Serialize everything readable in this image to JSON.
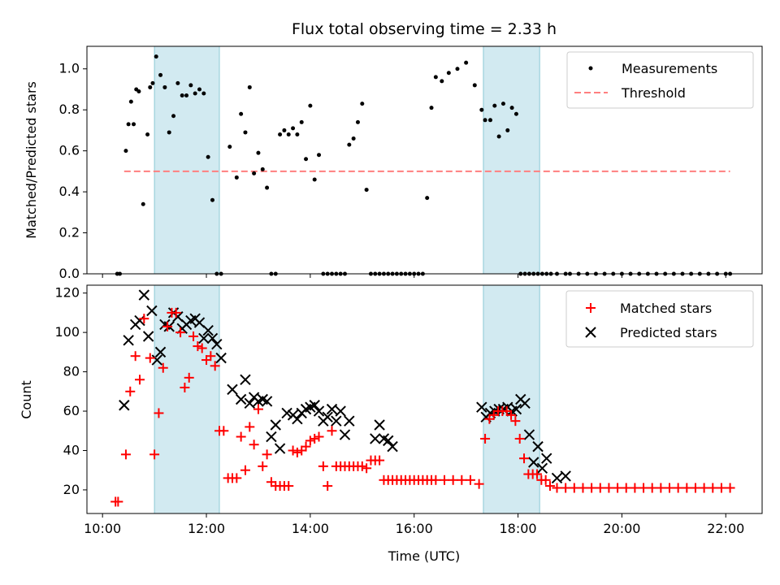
{
  "chart_data": [
    {
      "type": "scatter",
      "title": "Flux total observing time = 2.33 h",
      "ylabel": "Matched/Predicted stars",
      "xlabel": "",
      "ylim": [
        0,
        1.11
      ],
      "xlim_hours": [
        9.7,
        22.7
      ],
      "yticks": [
        0.0,
        0.2,
        0.4,
        0.6,
        0.8,
        1.0
      ],
      "ytick_labels": [
        "0.0",
        "0.2",
        "0.4",
        "0.6",
        "0.8",
        "1.0"
      ],
      "legend": {
        "placement": "top-right",
        "entries": [
          "Measurements",
          "Threshold"
        ]
      },
      "threshold": {
        "name": "Threshold",
        "value": 0.5,
        "x_range": [
          "10:25",
          "22:05"
        ],
        "color": "#ff7f7f"
      },
      "shaded_intervals": [
        [
          "11:00",
          "12:15"
        ],
        [
          "17:20",
          "18:25"
        ]
      ],
      "shade_color": "#add8e6",
      "series": [
        {
          "name": "Measurements",
          "color": "#000000",
          "x": [
            "10:17",
            "10:20",
            "10:27",
            "10:30",
            "10:33",
            "10:36",
            "10:39",
            "10:42",
            "10:47",
            "10:52",
            "10:55",
            "10:58",
            "11:02",
            "11:07",
            "11:12",
            "11:17",
            "11:22",
            "11:27",
            "11:32",
            "11:37",
            "11:42",
            "11:47",
            "11:52",
            "11:57",
            "12:02",
            "12:07",
            "12:12",
            "12:17",
            "12:27",
            "12:35",
            "12:40",
            "12:45",
            "12:50",
            "12:55",
            "13:00",
            "13:05",
            "13:10",
            "13:15",
            "13:20",
            "13:25",
            "13:30",
            "13:35",
            "13:40",
            "13:45",
            "13:50",
            "13:55",
            "14:00",
            "14:05",
            "14:10",
            "14:15",
            "14:20",
            "14:25",
            "14:30",
            "14:35",
            "14:40",
            "14:45",
            "14:50",
            "14:55",
            "15:00",
            "15:05",
            "15:10",
            "15:15",
            "15:20",
            "15:25",
            "15:30",
            "15:35",
            "15:40",
            "15:45",
            "15:50",
            "15:55",
            "16:00",
            "16:05",
            "16:10",
            "16:15",
            "16:20",
            "16:25",
            "16:32",
            "16:40",
            "16:50",
            "17:00",
            "17:10",
            "17:18",
            "17:22",
            "17:28",
            "17:33",
            "17:38",
            "17:43",
            "17:48",
            "17:53",
            "17:58",
            "18:03",
            "18:08",
            "18:13",
            "18:18",
            "18:23",
            "18:28",
            "18:33",
            "18:38",
            "18:45",
            "18:55",
            "19:00",
            "19:10",
            "19:20",
            "19:30",
            "19:40",
            "19:50",
            "20:00",
            "20:10",
            "20:20",
            "20:30",
            "20:40",
            "20:50",
            "21:00",
            "21:10",
            "21:20",
            "21:30",
            "21:40",
            "21:50",
            "22:00",
            "22:05"
          ],
          "y": [
            0.0,
            0.0,
            0.6,
            0.73,
            0.84,
            0.73,
            0.9,
            0.89,
            0.34,
            0.68,
            0.91,
            0.93,
            1.06,
            0.97,
            0.91,
            0.69,
            0.77,
            0.93,
            0.87,
            0.87,
            0.92,
            0.88,
            0.9,
            0.88,
            0.57,
            0.36,
            0.0,
            0.0,
            0.62,
            0.47,
            0.78,
            0.69,
            0.91,
            0.49,
            0.59,
            0.51,
            0.42,
            0.0,
            0.0,
            0.68,
            0.7,
            0.68,
            0.71,
            0.68,
            0.74,
            0.56,
            0.82,
            0.46,
            0.58,
            0.0,
            0.0,
            0.0,
            0.0,
            0.0,
            0.0,
            0.63,
            0.66,
            0.74,
            0.83,
            0.41,
            0.0,
            0.0,
            0.0,
            0.0,
            0.0,
            0.0,
            0.0,
            0.0,
            0.0,
            0.0,
            0.0,
            0.0,
            0.0,
            0.37,
            0.81,
            0.96,
            0.94,
            0.98,
            1.0,
            1.03,
            0.92,
            0.8,
            0.75,
            0.75,
            0.82,
            0.67,
            0.83,
            0.7,
            0.81,
            0.78,
            0.0,
            0.0,
            0.0,
            0.0,
            0.0,
            0.0,
            0.0,
            0.0,
            0.0,
            0.0,
            0.0,
            0.0,
            0.0,
            0.0,
            0.0,
            0.0,
            0.0,
            0.0,
            0.0,
            0.0,
            0.0,
            0.0,
            0.0,
            0.0,
            0.0,
            0.0,
            0.0,
            0.0,
            0.0,
            0.0
          ]
        }
      ]
    },
    {
      "type": "scatter",
      "title": "",
      "ylabel": "Count",
      "xlabel": "Time (UTC)",
      "ylim": [
        8,
        124
      ],
      "xlim_hours": [
        9.7,
        22.7
      ],
      "yticks": [
        20,
        40,
        60,
        80,
        100,
        120
      ],
      "ytick_labels": [
        "20",
        "40",
        "60",
        "80",
        "100",
        "120"
      ],
      "xticks": [
        "10:00",
        "12:00",
        "14:00",
        "16:00",
        "18:00",
        "20:00",
        "22:00"
      ],
      "legend": {
        "placement": "top-right",
        "entries": [
          "Matched stars",
          "Predicted stars"
        ]
      },
      "shaded_intervals": [
        [
          "11:00",
          "12:15"
        ],
        [
          "17:20",
          "18:25"
        ]
      ],
      "shade_color": "#add8e6",
      "series": [
        {
          "name": "Matched stars",
          "marker": "plus",
          "color": "#ff0000",
          "x": [
            "10:15",
            "10:18",
            "10:27",
            "10:32",
            "10:38",
            "10:43",
            "10:48",
            "10:55",
            "11:00",
            "11:05",
            "11:10",
            "11:15",
            "11:20",
            "11:25",
            "11:30",
            "11:35",
            "11:40",
            "11:45",
            "11:50",
            "11:55",
            "12:00",
            "12:05",
            "12:10",
            "12:15",
            "12:20",
            "12:25",
            "12:30",
            "12:35",
            "12:40",
            "12:45",
            "12:50",
            "12:55",
            "13:00",
            "13:05",
            "13:10",
            "13:15",
            "13:20",
            "13:25",
            "13:30",
            "13:35",
            "13:40",
            "13:45",
            "13:50",
            "13:55",
            "14:00",
            "14:05",
            "14:10",
            "14:15",
            "14:20",
            "14:25",
            "14:30",
            "14:35",
            "14:40",
            "14:45",
            "14:50",
            "14:55",
            "15:00",
            "15:05",
            "15:10",
            "15:15",
            "15:20",
            "15:25",
            "15:30",
            "15:35",
            "15:40",
            "15:45",
            "15:50",
            "15:55",
            "16:00",
            "16:05",
            "16:10",
            "16:15",
            "16:20",
            "16:25",
            "16:35",
            "16:45",
            "16:55",
            "17:05",
            "17:15",
            "17:22",
            "17:27",
            "17:32",
            "17:37",
            "17:42",
            "17:47",
            "17:52",
            "17:57",
            "18:02",
            "18:07",
            "18:12",
            "18:17",
            "18:22",
            "18:27",
            "18:32",
            "18:37",
            "18:45",
            "18:55",
            "19:05",
            "19:15",
            "19:25",
            "19:35",
            "19:45",
            "19:55",
            "20:05",
            "20:15",
            "20:25",
            "20:35",
            "20:45",
            "20:55",
            "21:05",
            "21:15",
            "21:25",
            "21:35",
            "21:45",
            "21:55",
            "22:05"
          ],
          "y": [
            14,
            14,
            38,
            70,
            88,
            76,
            107,
            87,
            38,
            59,
            82,
            103,
            110,
            110,
            100,
            72,
            77,
            98,
            93,
            92,
            86,
            88,
            83,
            50,
            50,
            26,
            26,
            26,
            47,
            30,
            52,
            43,
            61,
            32,
            38,
            24,
            22,
            22,
            22,
            22,
            40,
            39,
            40,
            42,
            45,
            46,
            47,
            32,
            22,
            50,
            32,
            32,
            32,
            32,
            32,
            32,
            32,
            31,
            35,
            35,
            35,
            25,
            25,
            25,
            25,
            25,
            25,
            25,
            25,
            25,
            25,
            25,
            25,
            25,
            25,
            25,
            25,
            25,
            23,
            46,
            56,
            58,
            60,
            60,
            60,
            58,
            55,
            46,
            36,
            28,
            28,
            28,
            25,
            25,
            22,
            21,
            21,
            21,
            21,
            21,
            21,
            21,
            21,
            21,
            21,
            21,
            21,
            21,
            21,
            21,
            21,
            21,
            21,
            21,
            21,
            21
          ]
        },
        {
          "name": "Predicted stars",
          "marker": "x",
          "color": "#000000",
          "x": [
            "10:25",
            "10:30",
            "10:38",
            "10:43",
            "10:48",
            "10:53",
            "10:57",
            "11:03",
            "11:07",
            "11:12",
            "11:17",
            "11:22",
            "11:27",
            "11:32",
            "11:37",
            "11:42",
            "11:47",
            "11:52",
            "11:57",
            "12:02",
            "12:07",
            "12:12",
            "12:17",
            "12:30",
            "12:40",
            "12:45",
            "12:50",
            "12:55",
            "13:00",
            "13:05",
            "13:10",
            "13:15",
            "13:20",
            "13:25",
            "13:33",
            "13:40",
            "13:45",
            "13:50",
            "13:55",
            "14:00",
            "14:05",
            "14:10",
            "14:15",
            "14:20",
            "14:25",
            "14:30",
            "14:35",
            "14:40",
            "14:45",
            "15:15",
            "15:20",
            "15:25",
            "15:30",
            "15:35",
            "17:18",
            "17:23",
            "17:28",
            "17:33",
            "17:38",
            "17:43",
            "17:48",
            "17:53",
            "17:58",
            "18:03",
            "18:08",
            "18:13",
            "18:18",
            "18:23",
            "18:28",
            "18:33",
            "18:45",
            "18:55"
          ],
          "y": [
            63,
            96,
            104,
            106,
            119,
            98,
            111,
            86,
            90,
            104,
            103,
            110,
            108,
            102,
            104,
            106,
            107,
            105,
            97,
            101,
            97,
            94,
            87,
            71,
            66,
            76,
            64,
            67,
            65,
            66,
            65,
            47,
            53,
            41,
            59,
            58,
            56,
            59,
            61,
            62,
            63,
            60,
            55,
            57,
            61,
            55,
            60,
            48,
            55,
            46,
            53,
            46,
            45,
            42,
            62,
            57,
            59,
            60,
            61,
            61,
            62,
            60,
            61,
            66,
            64,
            48,
            34,
            42,
            31,
            36,
            26,
            27
          ]
        }
      ]
    }
  ]
}
